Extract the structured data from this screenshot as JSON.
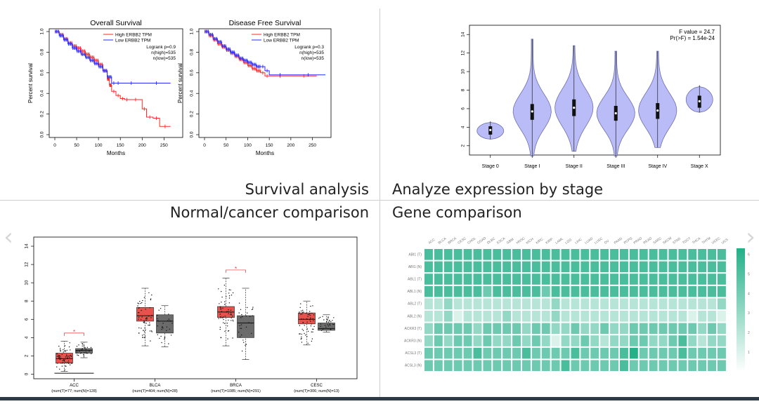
{
  "captions": {
    "top_left": "Survival analysis",
    "top_right": "Analyze expression by stage",
    "bottom_left": "Normal/cancer comparison",
    "bottom_right": "Gene comparison"
  },
  "nav": {
    "prev_icon": "chevron-left-icon",
    "next_icon": "chevron-right-icon",
    "prev_glyph": "‹",
    "next_glyph": "›"
  },
  "colors": {
    "high": "#ff2a2a",
    "low": "#2a2aff",
    "violin_fill": "#b9bcf6",
    "violin_stroke": "#6c6fb0",
    "tumor": "#e8524d",
    "normal": "#6b6b6b",
    "heat": "#2bb58c"
  },
  "chart_data": [
    {
      "type": "line",
      "id": "overall",
      "title": "Overall Survival",
      "xlabel": "Months",
      "ylabel": "Percent survival",
      "xlim": [
        0,
        280
      ],
      "ylim": [
        0,
        1
      ],
      "xticks": [
        "0",
        "50",
        "100",
        "150",
        "200",
        "250"
      ],
      "yticks": [
        "0.0",
        "0.2",
        "0.4",
        "0.6",
        "0.8",
        "1.0"
      ],
      "legend": [
        "High ERBB2 TPM",
        "Low ERBB2 TPM"
      ],
      "annotations": [
        "Logrank p=0.9",
        "n(high)=535",
        "n(low)=535"
      ],
      "series": [
        {
          "name": "High ERBB2 TPM",
          "x": [
            0,
            10,
            20,
            30,
            40,
            50,
            60,
            70,
            80,
            90,
            100,
            110,
            120,
            125,
            130,
            140,
            150,
            160,
            170,
            200,
            210,
            225,
            240,
            265
          ],
          "y": [
            1,
            0.97,
            0.93,
            0.89,
            0.86,
            0.84,
            0.81,
            0.78,
            0.75,
            0.72,
            0.68,
            0.62,
            0.54,
            0.48,
            0.42,
            0.38,
            0.35,
            0.34,
            0.34,
            0.25,
            0.17,
            0.16,
            0.08,
            0.08
          ]
        },
        {
          "name": "Low ERBB2 TPM",
          "x": [
            0,
            10,
            20,
            30,
            40,
            50,
            60,
            70,
            80,
            90,
            100,
            110,
            120,
            130,
            140,
            150,
            200,
            265
          ],
          "y": [
            1,
            0.96,
            0.92,
            0.88,
            0.84,
            0.81,
            0.78,
            0.75,
            0.72,
            0.69,
            0.66,
            0.62,
            0.56,
            0.5,
            0.5,
            0.5,
            0.5,
            0.5
          ]
        }
      ]
    },
    {
      "type": "line",
      "id": "disease_free",
      "title": "Disease Free Survival",
      "xlabel": "Months",
      "ylabel": "Percent survival",
      "xlim": [
        0,
        280
      ],
      "ylim": [
        0,
        1
      ],
      "xticks": [
        "0",
        "50",
        "100",
        "150",
        "200",
        "250"
      ],
      "yticks": [
        "0.0",
        "0.2",
        "0.4",
        "0.6",
        "0.8",
        "1.0"
      ],
      "legend": [
        "High ERBB2 TPM",
        "Low ERBB2 TPM"
      ],
      "annotations": [
        "Logrank p=0.3",
        "n(high)=535",
        "n(low)=535"
      ],
      "series": [
        {
          "name": "High ERBB2 TPM",
          "x": [
            0,
            10,
            20,
            30,
            40,
            50,
            60,
            70,
            80,
            90,
            100,
            110,
            120,
            130,
            140,
            150,
            200,
            260
          ],
          "y": [
            1,
            0.96,
            0.92,
            0.88,
            0.85,
            0.82,
            0.79,
            0.76,
            0.73,
            0.7,
            0.67,
            0.64,
            0.62,
            0.6,
            0.57,
            0.57,
            0.57,
            0.57
          ]
        },
        {
          "name": "Low ERBB2 TPM",
          "x": [
            0,
            10,
            20,
            30,
            40,
            50,
            60,
            70,
            80,
            90,
            100,
            110,
            120,
            130,
            140,
            150,
            200,
            280
          ],
          "y": [
            1,
            0.97,
            0.93,
            0.9,
            0.86,
            0.83,
            0.8,
            0.77,
            0.74,
            0.72,
            0.7,
            0.68,
            0.66,
            0.66,
            0.62,
            0.58,
            0.58,
            0.58
          ]
        }
      ]
    },
    {
      "type": "violin",
      "id": "stage",
      "categories": [
        "Stage 0",
        "Stage I",
        "Stage II",
        "Stage III",
        "Stage IV",
        "Stage X"
      ],
      "ylim": [
        1,
        15
      ],
      "yticks": [
        2,
        4,
        6,
        8,
        10,
        12,
        14
      ],
      "annotations": [
        "F value = 24.7",
        "Pr(>F) = 1.54e-24"
      ],
      "violins": [
        {
          "min": 2.7,
          "max": 4.6,
          "q1": 3.2,
          "median": 3.7,
          "q3": 4.1
        },
        {
          "min": 0.9,
          "max": 13.5,
          "q1": 4.8,
          "median": 5.7,
          "q3": 6.5
        },
        {
          "min": 1.4,
          "max": 12.8,
          "q1": 5.2,
          "median": 6.1,
          "q3": 7.0
        },
        {
          "min": 0.9,
          "max": 12.2,
          "q1": 4.7,
          "median": 5.5,
          "q3": 6.3
        },
        {
          "min": 1.8,
          "max": 12.2,
          "q1": 4.9,
          "median": 5.8,
          "q3": 6.6
        },
        {
          "min": 5.6,
          "max": 8.5,
          "q1": 6.1,
          "median": 6.8,
          "q3": 7.4
        }
      ]
    },
    {
      "type": "box",
      "id": "normal_cancer",
      "categories": [
        "ACC",
        "BLCA",
        "BRCA",
        "CESC"
      ],
      "sublabels": [
        "(num(T)=77; num(N)=128)",
        "(num(T)=404; num(N)=28)",
        "(num(T)=1085; num(N)=291)",
        "(num(T)=306; num(N)=13)"
      ],
      "ylim": [
        -0.5,
        15
      ],
      "yticks": [
        0,
        2,
        4,
        6,
        8,
        10,
        12,
        14
      ],
      "significant_marker": "*",
      "boxes": [
        {
          "tumor": {
            "q1": 1.2,
            "median": 1.7,
            "q3": 2.3,
            "lo": 0.3,
            "hi": 3.6
          },
          "normal": {
            "q1": 2.3,
            "median": 2.6,
            "q3": 2.8,
            "lo": 1.8,
            "hi": 3.5
          },
          "significant": true
        },
        {
          "tumor": {
            "q1": 5.8,
            "median": 6.4,
            "q3": 7.3,
            "lo": 3.1,
            "hi": 9.4
          },
          "normal": {
            "q1": 4.5,
            "median": 5.8,
            "q3": 6.5,
            "lo": 3.0,
            "hi": 7.5
          },
          "significant": false
        },
        {
          "tumor": {
            "q1": 6.2,
            "median": 6.8,
            "q3": 7.4,
            "lo": 3.1,
            "hi": 10.5
          },
          "normal": {
            "q1": 4.0,
            "median": 5.6,
            "q3": 6.4,
            "lo": 1.6,
            "hi": 9.4
          },
          "significant": true
        },
        {
          "tumor": {
            "q1": 5.5,
            "median": 6.0,
            "q3": 6.7,
            "lo": 3.2,
            "hi": 8.0
          },
          "normal": {
            "q1": 4.8,
            "median": 5.0,
            "q3": 5.6,
            "lo": 4.6,
            "hi": 6.5
          },
          "significant": false
        }
      ]
    },
    {
      "type": "heatmap",
      "id": "gene",
      "columns": [
        "ACC",
        "BLCA",
        "BRCA",
        "CESC",
        "CHOL",
        "COAD",
        "DLBC",
        "ESCA",
        "GBM",
        "HNSC",
        "KICH",
        "KIRC",
        "KIRP",
        "LAML",
        "LGG",
        "LIHC",
        "LUAD",
        "LUSC",
        "OV",
        "PAAD",
        "PCPG",
        "PRAD",
        "READ",
        "SARC",
        "SKCM",
        "STAD",
        "TGCT",
        "THCA",
        "THYM",
        "UCEC",
        "UCS"
      ],
      "rows": [
        "ABI1 (T)",
        "ABI1 (N)",
        "ABL1 (T)",
        "ABL1 (N)",
        "ABL2 (T)",
        "ABL2 (N)",
        "ACKR3 (T)",
        "ACKR3 (N)",
        "ACSL3 (T)",
        "ACSL3 (N)"
      ],
      "colorbar_ticks": [
        "1",
        "2",
        "3",
        "4",
        "5",
        "6"
      ],
      "matrix": [
        [
          5,
          5,
          5,
          5,
          5,
          5,
          5,
          5,
          5,
          5,
          5,
          5,
          5,
          5,
          5,
          5,
          5,
          5,
          5,
          5,
          5,
          5,
          5,
          5,
          5,
          5,
          5,
          5,
          5,
          5,
          5
        ],
        [
          5,
          5,
          5,
          5,
          5,
          5,
          5,
          5,
          5,
          5,
          5,
          5,
          5,
          5,
          5,
          5,
          5,
          5,
          5,
          5,
          5,
          5,
          5,
          5,
          5,
          5,
          5,
          5,
          5,
          5,
          5
        ],
        [
          5,
          5,
          5,
          5,
          5,
          5,
          5,
          5,
          5,
          5,
          5,
          5,
          5,
          5,
          5,
          5,
          5,
          5,
          5,
          5,
          5,
          5,
          5,
          5,
          5,
          5,
          5,
          5,
          5,
          5,
          5
        ],
        [
          5,
          5,
          5,
          5,
          5,
          5,
          4,
          5,
          5,
          5,
          5,
          5,
          4,
          5,
          5,
          5,
          5,
          5,
          5,
          5,
          5,
          5,
          5,
          5,
          5,
          5,
          5,
          5,
          5,
          5,
          5
        ],
        [
          2,
          2,
          3,
          2,
          2,
          2,
          2,
          2,
          2,
          2,
          2,
          2,
          2,
          3,
          2,
          2,
          2,
          2,
          2,
          2,
          2,
          2,
          2,
          2,
          2,
          2,
          2,
          2,
          2,
          2,
          3
        ],
        [
          2,
          2,
          3,
          1,
          2,
          2,
          2,
          2,
          3,
          2,
          2,
          2,
          2,
          3,
          2,
          2,
          2,
          2,
          2,
          2,
          2,
          2,
          2,
          2,
          2,
          2,
          2,
          1,
          2,
          2,
          1
        ],
        [
          3,
          4,
          4,
          4,
          4,
          3,
          4,
          4,
          4,
          4,
          3,
          4,
          4,
          3,
          3,
          4,
          3,
          3,
          4,
          3,
          3,
          4,
          4,
          4,
          4,
          4,
          4,
          4,
          3,
          4,
          3
        ],
        [
          3,
          4,
          3,
          4,
          4,
          3,
          4,
          3,
          3,
          4,
          3,
          4,
          3,
          1,
          3,
          3,
          4,
          3,
          2,
          3,
          3,
          4,
          4,
          3,
          3,
          4,
          5,
          3,
          2,
          3,
          3
        ],
        [
          4,
          4,
          4,
          4,
          4,
          5,
          4,
          4,
          4,
          4,
          5,
          4,
          4,
          4,
          4,
          5,
          4,
          4,
          4,
          4,
          5,
          6,
          4,
          4,
          4,
          4,
          5,
          4,
          4,
          4,
          4
        ],
        [
          4,
          4,
          4,
          4,
          4,
          4,
          4,
          4,
          4,
          4,
          4,
          4,
          4,
          4,
          5,
          4,
          4,
          4,
          4,
          4,
          5,
          4,
          4,
          4,
          4,
          4,
          4,
          4,
          4,
          4,
          4
        ]
      ]
    }
  ]
}
